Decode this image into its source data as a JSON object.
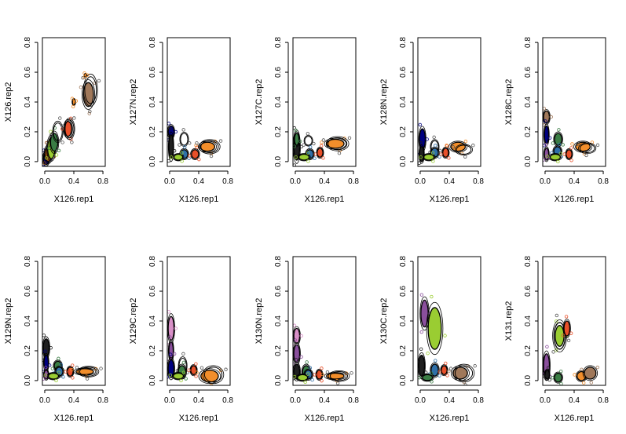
{
  "chart_data": [
    {
      "type": "scatter",
      "xlabel": "X126.rep1",
      "ylabel": "X126.rep2",
      "xlim": [
        0,
        0.8
      ],
      "ylim": [
        0,
        0.8
      ],
      "x_ticks": [
        "0.0",
        "0.4",
        "0.8"
      ],
      "y_ticks": [
        "0.0",
        "0.2",
        "0.4",
        "0.6",
        "0.8"
      ],
      "clusters": [
        {
          "x": 0.02,
          "y": 0.02,
          "sx": 0.04,
          "sy": 0.04,
          "color": "#000080",
          "fill": true
        },
        {
          "x": 0.05,
          "y": 0.05,
          "sx": 0.05,
          "sy": 0.05,
          "color": "#8b4513",
          "fill": true
        },
        {
          "x": 0.09,
          "y": 0.09,
          "sx": 0.05,
          "sy": 0.07,
          "color": "#9acd32",
          "fill": true
        },
        {
          "x": 0.13,
          "y": 0.13,
          "sx": 0.05,
          "sy": 0.06,
          "color": "#3a7d44",
          "fill": true
        },
        {
          "x": 0.18,
          "y": 0.2,
          "sx": 0.06,
          "sy": 0.06,
          "color": "#ffffff",
          "fill": false
        },
        {
          "x": 0.32,
          "y": 0.22,
          "sx": 0.05,
          "sy": 0.05,
          "color": "#e8502a",
          "fill": true
        },
        {
          "x": 0.34,
          "y": 0.22,
          "sx": 0.06,
          "sy": 0.06,
          "color": "#ffffff",
          "fill": false
        },
        {
          "x": 0.6,
          "y": 0.45,
          "sx": 0.07,
          "sy": 0.08,
          "color": "#a0785a",
          "fill": true
        },
        {
          "x": 0.63,
          "y": 0.48,
          "sx": 0.08,
          "sy": 0.09,
          "color": "#ffffff",
          "fill": false
        },
        {
          "x": 0.4,
          "y": 0.4,
          "sx": 0.02,
          "sy": 0.02,
          "color": "#f28e2b",
          "fill": true
        },
        {
          "x": 0.56,
          "y": 0.58,
          "sx": 0.01,
          "sy": 0.01,
          "color": "#f28e2b",
          "fill": true
        }
      ]
    },
    {
      "type": "scatter",
      "xlabel": "X126.rep1",
      "ylabel": "X127N.rep2",
      "xlim": [
        0,
        0.8
      ],
      "ylim": [
        0,
        0.8
      ],
      "x_ticks": [
        "0.0",
        "0.4",
        "0.8"
      ],
      "y_ticks": [
        "0.0",
        "0.2",
        "0.4",
        "0.6",
        "0.8"
      ],
      "clusters": [
        {
          "x": 0.02,
          "y": 0.2,
          "sx": 0.04,
          "sy": 0.04,
          "color": "#000080",
          "fill": true
        },
        {
          "x": 0.02,
          "y": 0.1,
          "sx": 0.03,
          "sy": 0.08,
          "color": "#1f1f1f",
          "fill": true
        },
        {
          "x": 0.2,
          "y": 0.15,
          "sx": 0.05,
          "sy": 0.04,
          "color": "#ffffff",
          "fill": false
        },
        {
          "x": 0.2,
          "y": 0.05,
          "sx": 0.05,
          "sy": 0.03,
          "color": "#2f6fa8",
          "fill": true
        },
        {
          "x": 0.35,
          "y": 0.05,
          "sx": 0.05,
          "sy": 0.03,
          "color": "#e8502a",
          "fill": true
        },
        {
          "x": 0.12,
          "y": 0.03,
          "sx": 0.06,
          "sy": 0.02,
          "color": "#9acd32",
          "fill": true
        },
        {
          "x": 0.52,
          "y": 0.1,
          "sx": 0.1,
          "sy": 0.03,
          "color": "#f28e2b",
          "fill": true
        },
        {
          "x": 0.55,
          "y": 0.1,
          "sx": 0.12,
          "sy": 0.04,
          "color": "#ffffff",
          "fill": false
        }
      ]
    },
    {
      "type": "scatter",
      "xlabel": "X126.rep1",
      "ylabel": "X127C.rep2",
      "xlim": [
        0,
        0.8
      ],
      "ylim": [
        0,
        0.8
      ],
      "x_ticks": [
        "0.0",
        "0.4",
        "0.8"
      ],
      "y_ticks": [
        "0.0",
        "0.2",
        "0.4",
        "0.6",
        "0.8"
      ],
      "clusters": [
        {
          "x": 0.02,
          "y": 0.1,
          "sx": 0.04,
          "sy": 0.09,
          "color": "#1f1f1f",
          "fill": true
        },
        {
          "x": 0.02,
          "y": 0.15,
          "sx": 0.03,
          "sy": 0.04,
          "color": "#3a7d44",
          "fill": true
        },
        {
          "x": 0.18,
          "y": 0.14,
          "sx": 0.05,
          "sy": 0.03,
          "color": "#ffffff",
          "fill": false
        },
        {
          "x": 0.2,
          "y": 0.05,
          "sx": 0.05,
          "sy": 0.03,
          "color": "#2f6fa8",
          "fill": true
        },
        {
          "x": 0.34,
          "y": 0.06,
          "sx": 0.04,
          "sy": 0.03,
          "color": "#e8502a",
          "fill": true
        },
        {
          "x": 0.12,
          "y": 0.03,
          "sx": 0.07,
          "sy": 0.02,
          "color": "#9acd32",
          "fill": true
        },
        {
          "x": 0.55,
          "y": 0.12,
          "sx": 0.12,
          "sy": 0.03,
          "color": "#f28e2b",
          "fill": true
        },
        {
          "x": 0.58,
          "y": 0.12,
          "sx": 0.13,
          "sy": 0.04,
          "color": "#ffffff",
          "fill": false
        }
      ]
    },
    {
      "type": "scatter",
      "xlabel": "X126.rep1",
      "ylabel": "X128N.rep2",
      "xlim": [
        0,
        0.8
      ],
      "ylim": [
        0,
        0.8
      ],
      "x_ticks": [
        "0.0",
        "0.4",
        "0.8"
      ],
      "y_ticks": [
        "0.0",
        "0.2",
        "0.4",
        "0.6",
        "0.8"
      ],
      "clusters": [
        {
          "x": 0.03,
          "y": 0.15,
          "sx": 0.04,
          "sy": 0.07,
          "color": "#000080",
          "fill": true
        },
        {
          "x": 0.02,
          "y": 0.05,
          "sx": 0.03,
          "sy": 0.05,
          "color": "#1f1f1f",
          "fill": true
        },
        {
          "x": 0.2,
          "y": 0.1,
          "sx": 0.05,
          "sy": 0.04,
          "color": "#ffffff",
          "fill": false
        },
        {
          "x": 0.2,
          "y": 0.06,
          "sx": 0.05,
          "sy": 0.03,
          "color": "#2f6fa8",
          "fill": true
        },
        {
          "x": 0.35,
          "y": 0.06,
          "sx": 0.04,
          "sy": 0.03,
          "color": "#e8502a",
          "fill": true
        },
        {
          "x": 0.12,
          "y": 0.03,
          "sx": 0.07,
          "sy": 0.02,
          "color": "#9acd32",
          "fill": true
        },
        {
          "x": 0.52,
          "y": 0.1,
          "sx": 0.1,
          "sy": 0.03,
          "color": "#f28e2b",
          "fill": true
        },
        {
          "x": 0.6,
          "y": 0.08,
          "sx": 0.1,
          "sy": 0.03,
          "color": "#ffffff",
          "fill": false
        }
      ]
    },
    {
      "type": "scatter",
      "xlabel": "X126.rep1",
      "ylabel": "X128C.rep2",
      "xlim": [
        0,
        0.8
      ],
      "ylim": [
        0,
        0.8
      ],
      "x_ticks": [
        "0.0",
        "0.4",
        "0.8"
      ],
      "y_ticks": [
        "0.0",
        "0.2",
        "0.4",
        "0.6",
        "0.8"
      ],
      "clusters": [
        {
          "x": 0.02,
          "y": 0.3,
          "sx": 0.04,
          "sy": 0.04,
          "color": "#a0785a",
          "fill": true
        },
        {
          "x": 0.02,
          "y": 0.18,
          "sx": 0.03,
          "sy": 0.06,
          "color": "#000080",
          "fill": true
        },
        {
          "x": 0.02,
          "y": 0.05,
          "sx": 0.03,
          "sy": 0.04,
          "color": "#8a4f9c",
          "fill": true
        },
        {
          "x": 0.18,
          "y": 0.15,
          "sx": 0.05,
          "sy": 0.04,
          "color": "#3a7d44",
          "fill": true
        },
        {
          "x": 0.17,
          "y": 0.07,
          "sx": 0.05,
          "sy": 0.03,
          "color": "#2f6fa8",
          "fill": true
        },
        {
          "x": 0.33,
          "y": 0.05,
          "sx": 0.04,
          "sy": 0.03,
          "color": "#e8502a",
          "fill": true
        },
        {
          "x": 0.14,
          "y": 0.03,
          "sx": 0.07,
          "sy": 0.02,
          "color": "#9acd32",
          "fill": true
        },
        {
          "x": 0.52,
          "y": 0.1,
          "sx": 0.1,
          "sy": 0.03,
          "color": "#f28e2b",
          "fill": true
        },
        {
          "x": 0.58,
          "y": 0.09,
          "sx": 0.1,
          "sy": 0.03,
          "color": "#ffffff",
          "fill": false
        }
      ]
    },
    {
      "type": "scatter",
      "xlabel": "X126.rep1",
      "ylabel": "X129N.rep2",
      "xlim": [
        0,
        0.8
      ],
      "ylim": [
        0,
        0.8
      ],
      "x_ticks": [
        "0.0",
        "0.4",
        "0.8"
      ],
      "y_ticks": [
        "0.0",
        "0.2",
        "0.4",
        "0.6",
        "0.8"
      ],
      "clusters": [
        {
          "x": 0.02,
          "y": 0.22,
          "sx": 0.04,
          "sy": 0.06,
          "color": "#1f1f1f",
          "fill": true
        },
        {
          "x": 0.02,
          "y": 0.12,
          "sx": 0.03,
          "sy": 0.05,
          "color": "#000080",
          "fill": true
        },
        {
          "x": 0.02,
          "y": 0.04,
          "sx": 0.03,
          "sy": 0.03,
          "color": "#8a4f9c",
          "fill": true
        },
        {
          "x": 0.18,
          "y": 0.1,
          "sx": 0.05,
          "sy": 0.03,
          "color": "#3a7d44",
          "fill": true
        },
        {
          "x": 0.2,
          "y": 0.06,
          "sx": 0.05,
          "sy": 0.03,
          "color": "#2f6fa8",
          "fill": true
        },
        {
          "x": 0.35,
          "y": 0.06,
          "sx": 0.04,
          "sy": 0.03,
          "color": "#e8502a",
          "fill": true
        },
        {
          "x": 0.12,
          "y": 0.03,
          "sx": 0.07,
          "sy": 0.02,
          "color": "#9acd32",
          "fill": true
        },
        {
          "x": 0.55,
          "y": 0.06,
          "sx": 0.12,
          "sy": 0.02,
          "color": "#f28e2b",
          "fill": true
        },
        {
          "x": 0.6,
          "y": 0.06,
          "sx": 0.12,
          "sy": 0.03,
          "color": "#ffffff",
          "fill": false
        }
      ]
    },
    {
      "type": "scatter",
      "xlabel": "X126.rep1",
      "ylabel": "X129C.rep2",
      "xlim": [
        0,
        0.8
      ],
      "ylim": [
        0,
        0.8
      ],
      "x_ticks": [
        "0.0",
        "0.4",
        "0.8"
      ],
      "y_ticks": [
        "0.0",
        "0.2",
        "0.4",
        "0.6",
        "0.8"
      ],
      "clusters": [
        {
          "x": 0.02,
          "y": 0.35,
          "sx": 0.04,
          "sy": 0.08,
          "color": "#d88fc7",
          "fill": true
        },
        {
          "x": 0.02,
          "y": 0.2,
          "sx": 0.03,
          "sy": 0.06,
          "color": "#8a4f9c",
          "fill": true
        },
        {
          "x": 0.02,
          "y": 0.08,
          "sx": 0.04,
          "sy": 0.06,
          "color": "#000080",
          "fill": true
        },
        {
          "x": 0.18,
          "y": 0.1,
          "sx": 0.05,
          "sy": 0.05,
          "color": "#ffffff",
          "fill": false
        },
        {
          "x": 0.17,
          "y": 0.06,
          "sx": 0.05,
          "sy": 0.04,
          "color": "#3a7d44",
          "fill": true
        },
        {
          "x": 0.33,
          "y": 0.07,
          "sx": 0.04,
          "sy": 0.03,
          "color": "#e8502a",
          "fill": true
        },
        {
          "x": 0.12,
          "y": 0.03,
          "sx": 0.07,
          "sy": 0.02,
          "color": "#9acd32",
          "fill": true
        },
        {
          "x": 0.55,
          "y": 0.03,
          "sx": 0.12,
          "sy": 0.04,
          "color": "#f28e2b",
          "fill": true
        },
        {
          "x": 0.6,
          "y": 0.04,
          "sx": 0.12,
          "sy": 0.05,
          "color": "#ffffff",
          "fill": false
        }
      ]
    },
    {
      "type": "scatter",
      "xlabel": "X126.rep1",
      "ylabel": "X130N.rep2",
      "xlim": [
        0,
        0.8
      ],
      "ylim": [
        0,
        0.8
      ],
      "x_ticks": [
        "0.0",
        "0.4",
        "0.8"
      ],
      "y_ticks": [
        "0.0",
        "0.2",
        "0.4",
        "0.6",
        "0.8"
      ],
      "clusters": [
        {
          "x": 0.02,
          "y": 0.3,
          "sx": 0.04,
          "sy": 0.05,
          "color": "#d88fc7",
          "fill": true
        },
        {
          "x": 0.02,
          "y": 0.18,
          "sx": 0.04,
          "sy": 0.06,
          "color": "#8a4f9c",
          "fill": true
        },
        {
          "x": 0.02,
          "y": 0.06,
          "sx": 0.04,
          "sy": 0.05,
          "color": "#1f1f1f",
          "fill": true
        },
        {
          "x": 0.15,
          "y": 0.06,
          "sx": 0.05,
          "sy": 0.04,
          "color": "#3a7d44",
          "fill": true
        },
        {
          "x": 0.18,
          "y": 0.04,
          "sx": 0.05,
          "sy": 0.03,
          "color": "#2f6fa8",
          "fill": true
        },
        {
          "x": 0.33,
          "y": 0.04,
          "sx": 0.04,
          "sy": 0.03,
          "color": "#e8502a",
          "fill": true
        },
        {
          "x": 0.1,
          "y": 0.02,
          "sx": 0.07,
          "sy": 0.02,
          "color": "#9acd32",
          "fill": true
        },
        {
          "x": 0.55,
          "y": 0.03,
          "sx": 0.12,
          "sy": 0.02,
          "color": "#f28e2b",
          "fill": true
        },
        {
          "x": 0.6,
          "y": 0.03,
          "sx": 0.12,
          "sy": 0.03,
          "color": "#ffffff",
          "fill": false
        }
      ]
    },
    {
      "type": "scatter",
      "xlabel": "X126.rep1",
      "ylabel": "X130C.rep2",
      "xlim": [
        0,
        0.8
      ],
      "ylim": [
        0,
        0.8
      ],
      "x_ticks": [
        "0.0",
        "0.4",
        "0.8"
      ],
      "y_ticks": [
        "0.0",
        "0.2",
        "0.4",
        "0.6",
        "0.8"
      ],
      "clusters": [
        {
          "x": 0.06,
          "y": 0.45,
          "sx": 0.05,
          "sy": 0.09,
          "color": "#8a4f9c",
          "fill": true
        },
        {
          "x": 0.2,
          "y": 0.35,
          "sx": 0.09,
          "sy": 0.14,
          "color": "#9acd32",
          "fill": true
        },
        {
          "x": 0.02,
          "y": 0.1,
          "sx": 0.04,
          "sy": 0.07,
          "color": "#1f1f1f",
          "fill": true
        },
        {
          "x": 0.2,
          "y": 0.07,
          "sx": 0.05,
          "sy": 0.04,
          "color": "#2f6fa8",
          "fill": true
        },
        {
          "x": 0.33,
          "y": 0.07,
          "sx": 0.04,
          "sy": 0.03,
          "color": "#e8502a",
          "fill": true
        },
        {
          "x": 0.1,
          "y": 0.02,
          "sx": 0.07,
          "sy": 0.02,
          "color": "#3a7d44",
          "fill": true
        },
        {
          "x": 0.55,
          "y": 0.05,
          "sx": 0.1,
          "sy": 0.04,
          "color": "#a0785a",
          "fill": true
        },
        {
          "x": 0.6,
          "y": 0.05,
          "sx": 0.12,
          "sy": 0.05,
          "color": "#ffffff",
          "fill": false
        }
      ]
    },
    {
      "type": "scatter",
      "xlabel": "X126.rep1",
      "ylabel": "X131.rep2",
      "xlim": [
        0,
        0.8
      ],
      "ylim": [
        0,
        0.8
      ],
      "x_ticks": [
        "0.0",
        "0.4",
        "0.8"
      ],
      "y_ticks": [
        "0.0",
        "0.2",
        "0.4",
        "0.6",
        "0.8"
      ],
      "clusters": [
        {
          "x": 0.2,
          "y": 0.3,
          "sx": 0.06,
          "sy": 0.07,
          "color": "#9acd32",
          "fill": true
        },
        {
          "x": 0.2,
          "y": 0.3,
          "sx": 0.08,
          "sy": 0.09,
          "color": "#ffffff",
          "fill": false
        },
        {
          "x": 0.3,
          "y": 0.35,
          "sx": 0.04,
          "sy": 0.05,
          "color": "#e8502a",
          "fill": true
        },
        {
          "x": 0.02,
          "y": 0.1,
          "sx": 0.04,
          "sy": 0.08,
          "color": "#8a4f9c",
          "fill": true
        },
        {
          "x": 0.03,
          "y": 0.04,
          "sx": 0.03,
          "sy": 0.03,
          "color": "#1f1f1f",
          "fill": true
        },
        {
          "x": 0.18,
          "y": 0.02,
          "sx": 0.05,
          "sy": 0.03,
          "color": "#3a7d44",
          "fill": true
        },
        {
          "x": 0.5,
          "y": 0.03,
          "sx": 0.06,
          "sy": 0.03,
          "color": "#f28e2b",
          "fill": true
        },
        {
          "x": 0.62,
          "y": 0.05,
          "sx": 0.08,
          "sy": 0.04,
          "color": "#a0785a",
          "fill": true
        }
      ]
    }
  ]
}
